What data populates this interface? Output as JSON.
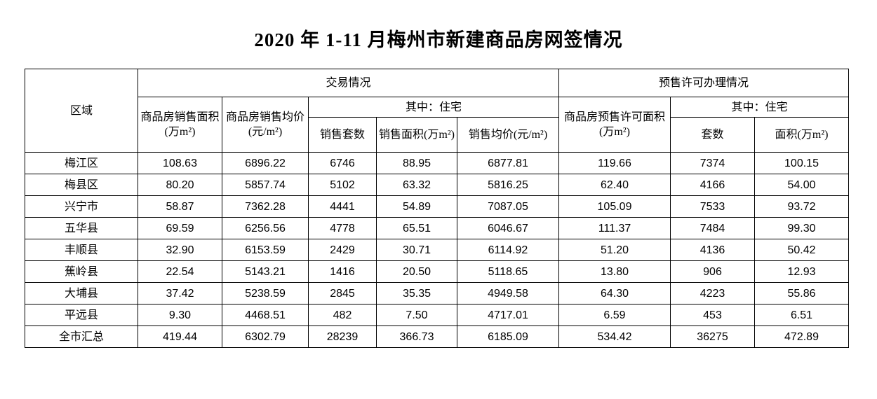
{
  "page": {
    "background_color": "#ffffff",
    "text_color": "#000000",
    "border_color": "#000000"
  },
  "title": "2020 年 1-11 月梅州市新建商品房网签情况",
  "table": {
    "col_headers": {
      "region": "区域",
      "trade_group": "交易情况",
      "presale_group": "预售许可办理情况",
      "trade_sales_area": "商品房销售面积(万m²)",
      "trade_avg_price": "商品房销售均价(元/m²)",
      "trade_residential": "其中：住宅",
      "trade_res_units": "销售套数",
      "trade_res_area": "销售面积(万m²)",
      "trade_res_price": "销售均价(元/m²)",
      "presale_area": "商品房预售许可面积(万m²)",
      "presale_residential": "其中：住宅",
      "presale_res_units": "套数",
      "presale_res_area": "面积(万m²)"
    },
    "rows": [
      {
        "region": "梅江区",
        "values": [
          "108.63",
          "6896.22",
          "6746",
          "88.95",
          "6877.81",
          "119.66",
          "7374",
          "100.15"
        ]
      },
      {
        "region": "梅县区",
        "values": [
          "80.20",
          "5857.74",
          "5102",
          "63.32",
          "5816.25",
          "62.40",
          "4166",
          "54.00"
        ]
      },
      {
        "region": "兴宁市",
        "values": [
          "58.87",
          "7362.28",
          "4441",
          "54.89",
          "7087.05",
          "105.09",
          "7533",
          "93.72"
        ]
      },
      {
        "region": "五华县",
        "values": [
          "69.59",
          "6256.56",
          "4778",
          "65.51",
          "6046.67",
          "111.37",
          "7484",
          "99.30"
        ]
      },
      {
        "region": "丰顺县",
        "values": [
          "32.90",
          "6153.59",
          "2429",
          "30.71",
          "6114.92",
          "51.20",
          "4136",
          "50.42"
        ]
      },
      {
        "region": "蕉岭县",
        "values": [
          "22.54",
          "5143.21",
          "1416",
          "20.50",
          "5118.65",
          "13.80",
          "906",
          "12.93"
        ]
      },
      {
        "region": "大埔县",
        "values": [
          "37.42",
          "5238.59",
          "2845",
          "35.35",
          "4949.58",
          "64.30",
          "4223",
          "55.86"
        ]
      },
      {
        "region": "平远县",
        "values": [
          "9.30",
          "4468.51",
          "482",
          "7.50",
          "4717.01",
          "6.59",
          "453",
          "6.51"
        ]
      },
      {
        "region": "全市汇总",
        "values": [
          "419.44",
          "6302.79",
          "28239",
          "366.73",
          "6185.09",
          "534.42",
          "36275",
          "472.89"
        ]
      }
    ]
  }
}
